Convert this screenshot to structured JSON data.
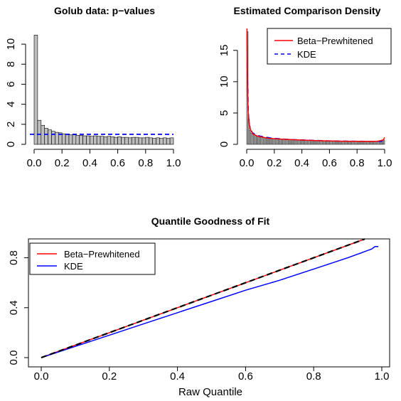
{
  "chart_data": [
    {
      "type": "bar",
      "title": "Golub data: p−values",
      "xlim": [
        0,
        1
      ],
      "ylim": [
        0,
        11
      ],
      "x_ticks": [
        "0.0",
        "0.2",
        "0.4",
        "0.6",
        "0.8",
        "1.0"
      ],
      "y_ticks": [
        "0",
        "2",
        "4",
        "6",
        "8",
        "10"
      ],
      "bin_width": 0.025,
      "values": [
        10.9,
        2.4,
        1.9,
        1.6,
        1.45,
        1.3,
        1.2,
        1.15,
        1.05,
        1.0,
        0.95,
        0.95,
        0.9,
        0.9,
        0.85,
        0.85,
        0.8,
        0.85,
        0.8,
        0.8,
        0.75,
        0.8,
        0.75,
        0.7,
        0.75,
        0.7,
        0.7,
        0.65,
        0.7,
        0.7,
        0.65,
        0.65,
        0.7,
        0.65,
        0.6,
        0.65,
        0.6,
        0.65,
        0.6,
        0.65
      ],
      "reference_line": {
        "y": 1.0,
        "color": "#0000ff",
        "style": "dashed"
      },
      "bar_fill": "#bebebe"
    },
    {
      "type": "bar",
      "title": "Estimated Comparison Density",
      "xlim": [
        0,
        1
      ],
      "ylim": [
        0,
        18.5
      ],
      "x_ticks": [
        "0.0",
        "0.2",
        "0.4",
        "0.6",
        "0.8",
        "1.0"
      ],
      "y_ticks": [
        "0",
        "5",
        "10",
        "15"
      ],
      "bin_width": 0.01,
      "values": [
        18.0,
        4.0,
        2.2,
        1.8,
        1.6,
        1.5,
        1.4,
        1.3,
        1.3,
        1.2,
        1.2,
        1.1,
        1.1,
        1.1,
        1.0,
        1.0,
        1.0,
        0.95,
        0.95,
        0.9,
        0.9,
        0.9,
        0.85,
        0.85,
        0.85,
        0.8,
        0.8,
        0.8,
        0.8,
        0.8,
        0.75,
        0.75,
        0.75,
        0.75,
        0.7,
        0.7,
        0.7,
        0.7,
        0.7,
        0.7,
        0.65,
        0.65,
        0.65,
        0.65,
        0.65,
        0.65,
        0.6,
        0.6,
        0.6,
        0.6,
        0.6,
        0.6,
        0.6,
        0.6,
        0.6,
        0.55,
        0.55,
        0.55,
        0.55,
        0.55,
        0.55,
        0.55,
        0.55,
        0.55,
        0.55,
        0.55,
        0.55,
        0.5,
        0.5,
        0.5,
        0.5,
        0.5,
        0.5,
        0.5,
        0.5,
        0.5,
        0.5,
        0.5,
        0.5,
        0.5,
        0.5,
        0.5,
        0.5,
        0.5,
        0.5,
        0.5,
        0.5,
        0.5,
        0.5,
        0.5,
        0.5,
        0.5,
        0.5,
        0.5,
        0.5,
        0.5,
        0.5,
        0.5,
        0.55,
        0.7
      ],
      "series": [
        {
          "name": "Beta−Prewhitened",
          "color": "#ff0000",
          "style": "solid",
          "x": [
            0.002,
            0.005,
            0.01,
            0.015,
            0.02,
            0.03,
            0.05,
            0.08,
            0.1,
            0.15,
            0.2,
            0.3,
            0.4,
            0.5,
            0.6,
            0.7,
            0.8,
            0.9,
            0.95,
            0.99,
            1.0
          ],
          "y": [
            18.5,
            10.0,
            5.5,
            3.9,
            3.0,
            2.2,
            1.6,
            1.3,
            1.2,
            1.0,
            0.9,
            0.78,
            0.68,
            0.6,
            0.55,
            0.5,
            0.48,
            0.47,
            0.5,
            0.7,
            1.1
          ]
        },
        {
          "name": "KDE",
          "color": "#0000ff",
          "style": "dashed",
          "x": [
            0.003,
            0.008,
            0.012,
            0.02,
            0.04,
            0.07,
            0.1,
            0.15,
            0.2,
            0.3,
            0.4,
            0.5,
            0.6,
            0.7,
            0.8,
            0.9,
            1.0
          ],
          "y": [
            13.0,
            9.0,
            5.0,
            3.0,
            1.9,
            1.45,
            1.3,
            1.1,
            0.95,
            0.8,
            0.7,
            0.62,
            0.56,
            0.52,
            0.5,
            0.48,
            0.47
          ]
        }
      ],
      "legend": {
        "position": "top-right",
        "entries": [
          "Beta−Prewhitened",
          "KDE"
        ]
      }
    },
    {
      "type": "line",
      "title": "Quantile Goodness of Fit",
      "xlabel": "Raw Quantile",
      "xlim": [
        0,
        1
      ],
      "ylim": [
        0,
        0.9
      ],
      "x_ticks": [
        "0.0",
        "0.2",
        "0.4",
        "0.6",
        "0.8",
        "1.0"
      ],
      "y_ticks": [
        "0.0",
        "0.4",
        "0.8"
      ],
      "series": [
        {
          "name": "Beta−Prewhitened",
          "color": "#ff0000",
          "style": "solid",
          "x": [
            0.0,
            0.1,
            0.2,
            0.3,
            0.4,
            0.5,
            0.6,
            0.7,
            0.8,
            0.9,
            0.95
          ],
          "y": [
            0.0,
            0.1,
            0.2,
            0.3,
            0.4,
            0.5,
            0.6,
            0.7,
            0.8,
            0.9,
            0.95
          ]
        },
        {
          "name": "KDE",
          "color": "#0000ff",
          "style": "solid",
          "x": [
            0.0,
            0.1,
            0.2,
            0.3,
            0.4,
            0.5,
            0.6,
            0.7,
            0.8,
            0.9,
            0.95,
            0.97,
            0.98,
            0.99
          ],
          "y": [
            0.0,
            0.09,
            0.18,
            0.27,
            0.36,
            0.45,
            0.54,
            0.62,
            0.71,
            0.8,
            0.85,
            0.87,
            0.89,
            0.89
          ]
        },
        {
          "color": "#000000",
          "style": "dashed",
          "x": [
            0.0,
            0.95
          ],
          "y": [
            0.0,
            0.95
          ]
        }
      ],
      "legend": {
        "position": "top-left",
        "entries": [
          "Beta−Prewhitened",
          "KDE"
        ]
      }
    }
  ]
}
